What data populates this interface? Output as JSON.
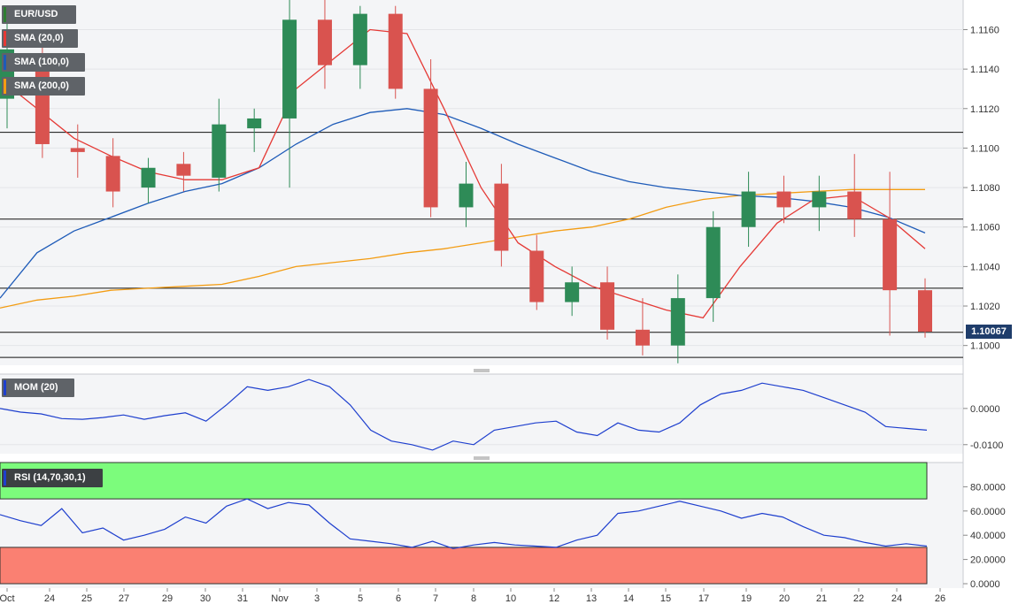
{
  "chart_data": {
    "type": "candlestick",
    "symbol": "EUR/USD",
    "last_price": "1.10067",
    "main_panel": {
      "ylim": [
        1.099,
        1.1175
      ],
      "yticks": [
        "1.1000",
        "1.1020",
        "1.1040",
        "1.1060",
        "1.1080",
        "1.1100",
        "1.1120",
        "1.1140",
        "1.1160"
      ],
      "horizontal_levels": [
        1.1108,
        1.1064,
        1.1029,
        1.10067,
        1.0994
      ],
      "indicators": [
        {
          "name": "SMA (20,0)",
          "color": "#e53935"
        },
        {
          "name": "SMA (100,0)",
          "color": "#1e5bb8"
        },
        {
          "name": "SMA (200,0)",
          "color": "#f39c12"
        }
      ],
      "sma20": [
        1.1135,
        1.112,
        1.1105,
        1.1096,
        1.1088,
        1.1084,
        1.1084,
        1.109,
        1.113,
        1.1145,
        1.116,
        1.1158,
        1.112,
        1.108,
        1.1052,
        1.104,
        1.103,
        1.1024,
        1.1018,
        1.1014,
        1.104,
        1.1062,
        1.1074,
        1.1076,
        1.1065,
        1.1049
      ],
      "sma100": [
        1.1024,
        1.1047,
        1.1058,
        1.1065,
        1.1072,
        1.1078,
        1.1082,
        1.109,
        1.1102,
        1.1112,
        1.1118,
        1.112,
        1.1117,
        1.111,
        1.1102,
        1.1095,
        1.1088,
        1.1083,
        1.108,
        1.1078,
        1.1076,
        1.1075,
        1.1073,
        1.107,
        1.1065,
        1.1057
      ],
      "sma200": [
        1.1019,
        1.1023,
        1.1025,
        1.1028,
        1.1029,
        1.103,
        1.1031,
        1.1035,
        1.104,
        1.1042,
        1.1044,
        1.1047,
        1.1049,
        1.1052,
        1.1055,
        1.1058,
        1.106,
        1.1064,
        1.107,
        1.1074,
        1.1076,
        1.1077,
        1.1078,
        1.1079,
        1.1079,
        1.1079
      ],
      "candles": [
        {
          "o": 1.1125,
          "h": 1.1168,
          "l": 1.111,
          "c": 1.115
        },
        {
          "o": 1.1148,
          "h": 1.1155,
          "l": 1.1095,
          "c": 1.1102
        },
        {
          "o": 1.11,
          "h": 1.1112,
          "l": 1.1085,
          "c": 1.1098
        },
        {
          "o": 1.1096,
          "h": 1.1105,
          "l": 1.107,
          "c": 1.1078
        },
        {
          "o": 1.108,
          "h": 1.1095,
          "l": 1.1072,
          "c": 1.109
        },
        {
          "o": 1.1092,
          "h": 1.1098,
          "l": 1.1078,
          "c": 1.1086
        },
        {
          "o": 1.1085,
          "h": 1.1125,
          "l": 1.1078,
          "c": 1.1112
        },
        {
          "o": 1.111,
          "h": 1.112,
          "l": 1.1098,
          "c": 1.1115
        },
        {
          "o": 1.1115,
          "h": 1.1175,
          "l": 1.108,
          "c": 1.1165
        },
        {
          "o": 1.1165,
          "h": 1.1175,
          "l": 1.113,
          "c": 1.1142
        },
        {
          "o": 1.1142,
          "h": 1.1172,
          "l": 1.113,
          "c": 1.1168
        },
        {
          "o": 1.1168,
          "h": 1.1172,
          "l": 1.1125,
          "c": 1.113
        },
        {
          "o": 1.113,
          "h": 1.1145,
          "l": 1.1065,
          "c": 1.107
        },
        {
          "o": 1.107,
          "h": 1.1093,
          "l": 1.106,
          "c": 1.1082
        },
        {
          "o": 1.1082,
          "h": 1.1092,
          "l": 1.104,
          "c": 1.1048
        },
        {
          "o": 1.1048,
          "h": 1.1056,
          "l": 1.1018,
          "c": 1.1022
        },
        {
          "o": 1.1022,
          "h": 1.104,
          "l": 1.1015,
          "c": 1.1032
        },
        {
          "o": 1.1032,
          "h": 1.104,
          "l": 1.1003,
          "c": 1.1008
        },
        {
          "o": 1.1008,
          "h": 1.1024,
          "l": 1.0995,
          "c": 1.1
        },
        {
          "o": 1.1,
          "h": 1.1036,
          "l": 1.0991,
          "c": 1.1024
        },
        {
          "o": 1.1024,
          "h": 1.1068,
          "l": 1.1012,
          "c": 1.106
        },
        {
          "o": 1.106,
          "h": 1.1088,
          "l": 1.105,
          "c": 1.1078
        },
        {
          "o": 1.1078,
          "h": 1.1086,
          "l": 1.1062,
          "c": 1.107
        },
        {
          "o": 1.107,
          "h": 1.1086,
          "l": 1.1058,
          "c": 1.1078
        },
        {
          "o": 1.1078,
          "h": 1.1097,
          "l": 1.1055,
          "c": 1.1064
        },
        {
          "o": 1.1064,
          "h": 1.1088,
          "l": 1.1005,
          "c": 1.1028
        },
        {
          "o": 1.1028,
          "h": 1.1034,
          "l": 1.1004,
          "c": 1.1007
        }
      ]
    },
    "mom_panel": {
      "name": "MOM (20)",
      "color": "#1e3fce",
      "yticks": [
        "0.0000",
        "-0.0100"
      ],
      "ylim": [
        -0.0125,
        0.0095
      ],
      "values": [
        0.0,
        -0.001,
        -0.0015,
        -0.0028,
        -0.003,
        -0.0025,
        -0.0018,
        -0.003,
        -0.002,
        -0.0012,
        -0.0035,
        0.001,
        0.006,
        0.005,
        0.006,
        0.008,
        0.006,
        0.001,
        -0.006,
        -0.009,
        -0.01,
        -0.0115,
        -0.009,
        -0.01,
        -0.006,
        -0.005,
        -0.004,
        -0.0035,
        -0.0065,
        -0.0075,
        -0.004,
        -0.006,
        -0.0065,
        -0.004,
        0.001,
        0.004,
        0.005,
        0.007,
        0.006,
        0.005,
        0.003,
        0.001,
        -0.001,
        -0.005,
        -0.0055,
        -0.006
      ],
      "x_start": 0,
      "x_end": 1047
    },
    "rsi_panel": {
      "name": "RSI (14,70,30,1)",
      "color": "#1e3fce",
      "yticks": [
        "80.0000",
        "60.0000",
        "40.0000",
        "20.0000",
        "0.0000"
      ],
      "ylim": [
        0,
        100
      ],
      "overbought": 70,
      "oversold": 30,
      "values": [
        57,
        52,
        48,
        62,
        42,
        46,
        36,
        40,
        45,
        55,
        50,
        64,
        70,
        62,
        67,
        65,
        50,
        37,
        35,
        33,
        30,
        35,
        29,
        32,
        34,
        32,
        31,
        30,
        36,
        40,
        58,
        60,
        64,
        68,
        64,
        60,
        54,
        58,
        55,
        47,
        40,
        38,
        34,
        31,
        33,
        31
      ],
      "x_start": 0,
      "x_end": 1047
    },
    "x_labels": [
      "Oct",
      "24",
      "25",
      "27",
      "29",
      "30",
      "31",
      "Nov",
      "3",
      "5",
      "6",
      "7",
      "8",
      "10",
      "12",
      "13",
      "14",
      "15",
      "17",
      "19",
      "20",
      "21",
      "22",
      "24",
      "26"
    ]
  }
}
